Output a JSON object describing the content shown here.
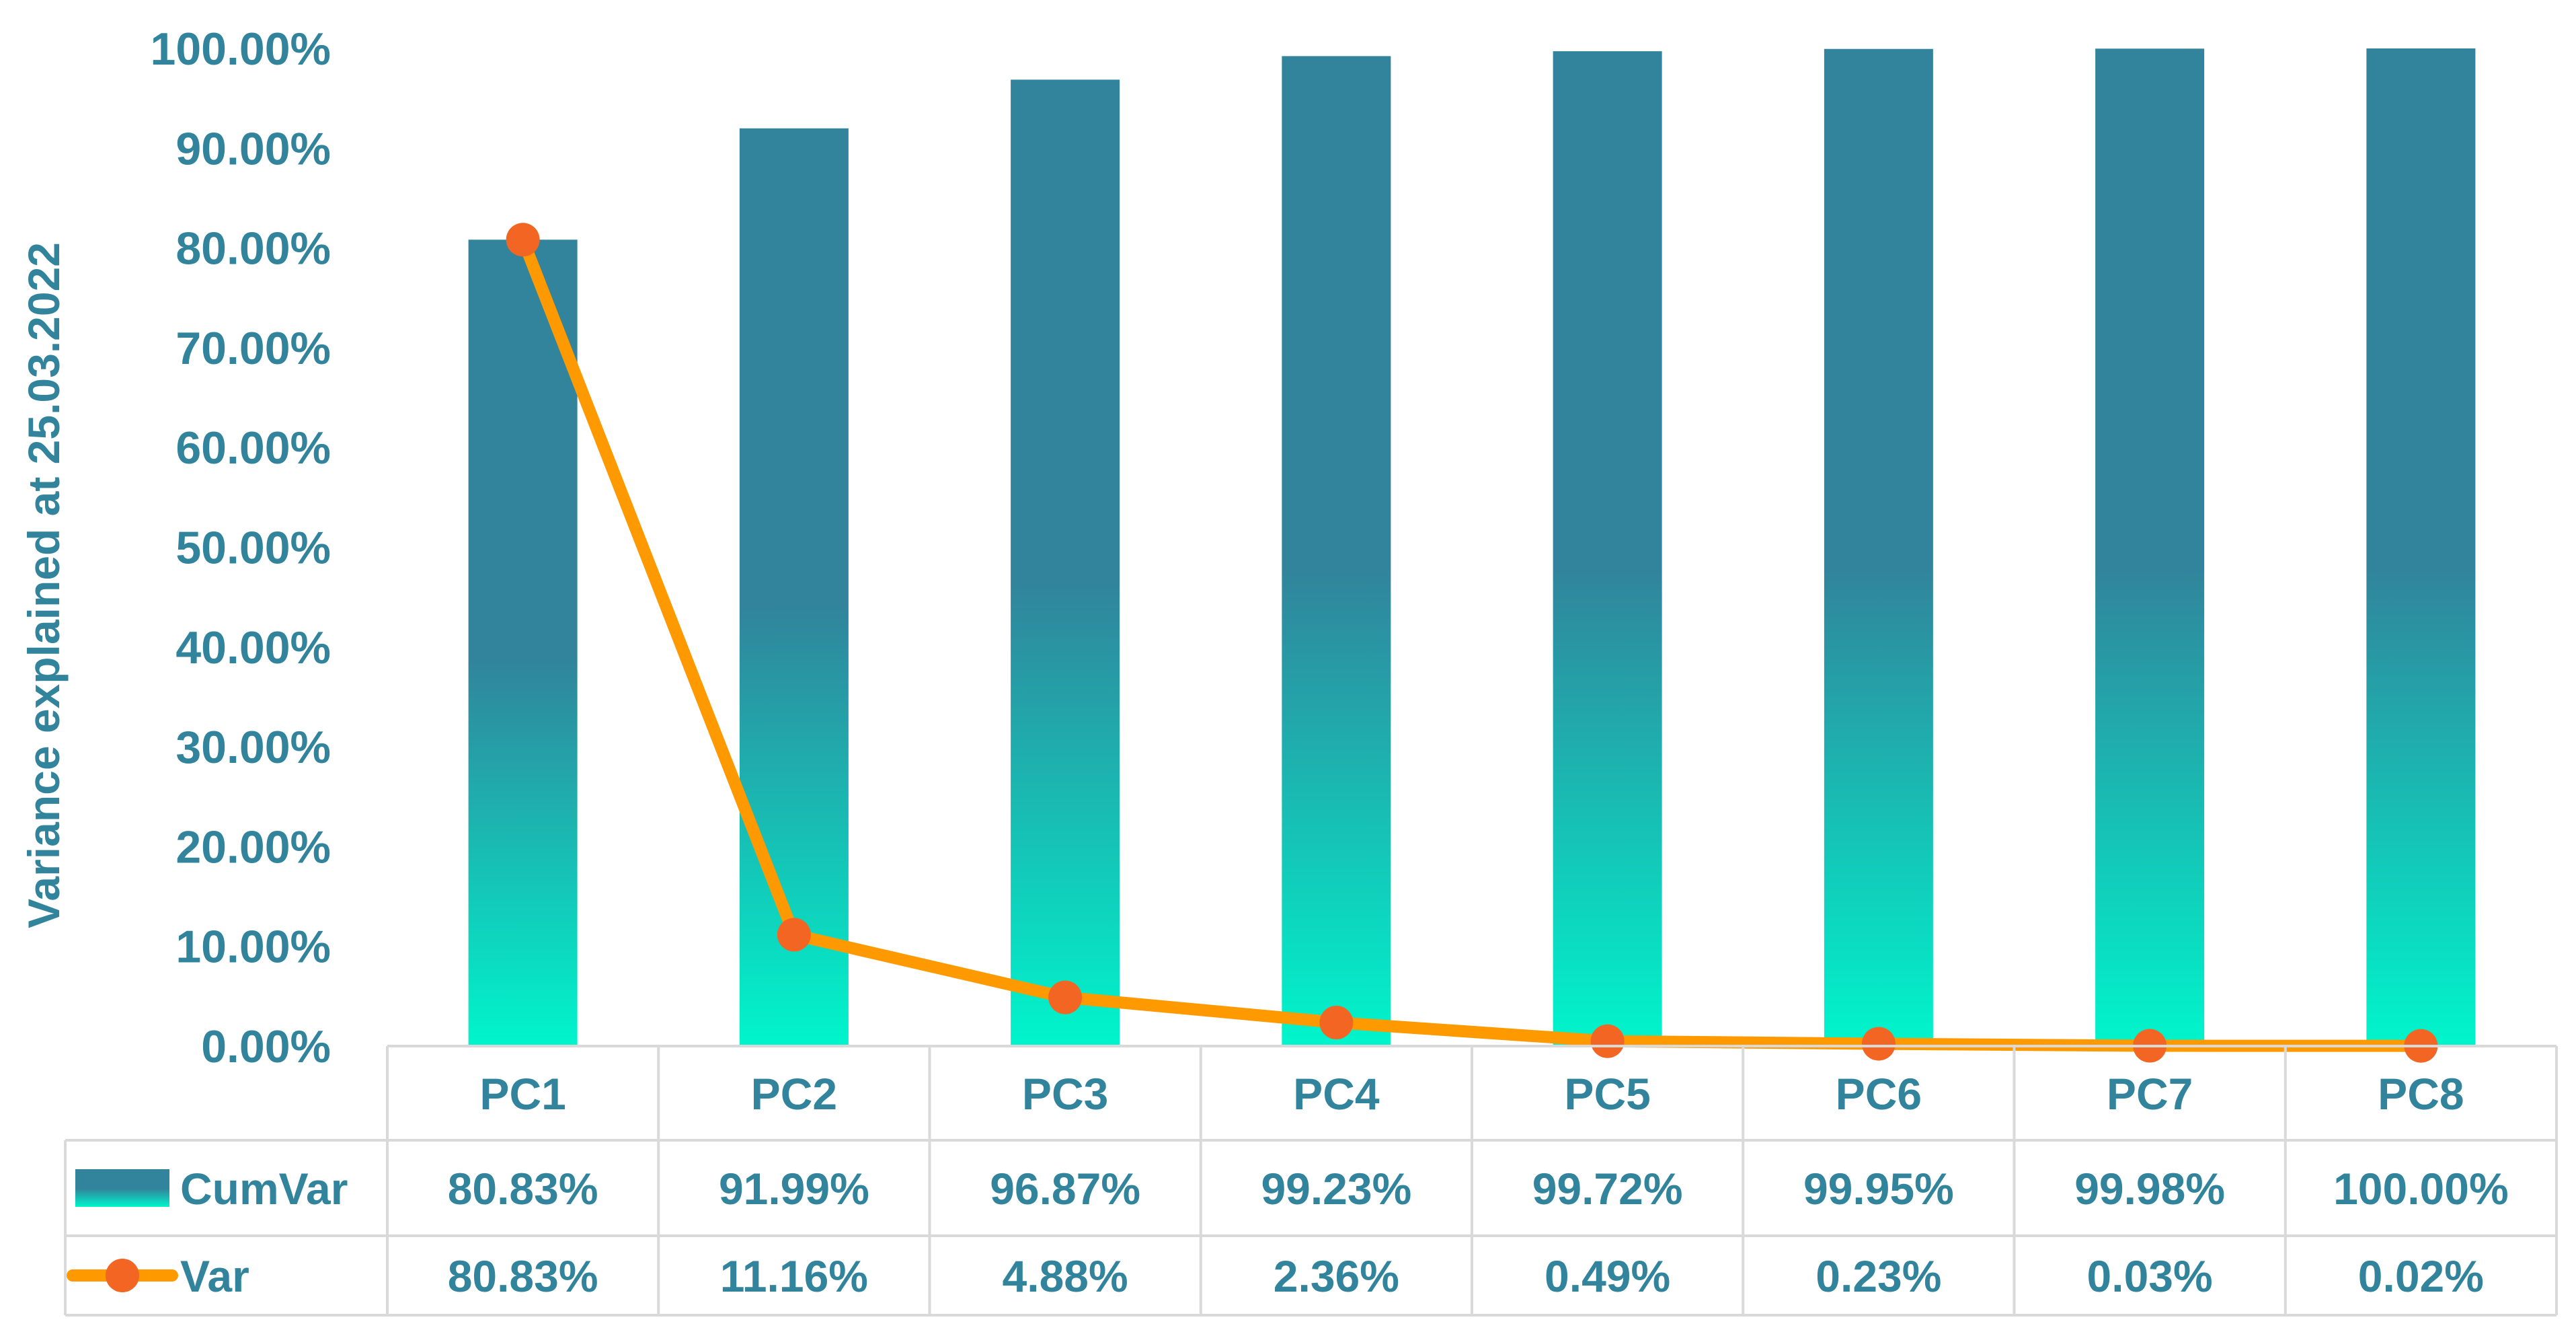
{
  "chart_data": {
    "type": "bar",
    "categories": [
      "PC1",
      "PC2",
      "PC3",
      "PC4",
      "PC5",
      "PC6",
      "PC7",
      "PC8"
    ],
    "series": [
      {
        "name": "CumVar",
        "type": "bar",
        "values": [
          80.83,
          91.99,
          96.87,
          99.23,
          99.72,
          99.95,
          99.98,
          100.0
        ],
        "labels": [
          "80.83%",
          "91.99%",
          "96.87%",
          "99.23%",
          "99.72%",
          "99.95%",
          "99.98%",
          "100.00%"
        ],
        "color_top": "#31849B",
        "color_bottom": "#00F5CC"
      },
      {
        "name": "Var",
        "type": "line",
        "values": [
          80.83,
          11.16,
          4.88,
          2.36,
          0.49,
          0.23,
          0.03,
          0.02
        ],
        "labels": [
          "80.83%",
          "11.16%",
          "4.88%",
          "2.36%",
          "0.49%",
          "0.23%",
          "0.03%",
          "0.02%"
        ],
        "line_color": "#FF9900",
        "marker_color": "#F26522"
      }
    ],
    "ylabel": "Variance explained at 25.03.2022",
    "ylim": [
      0,
      100
    ],
    "yticks": [
      0,
      10,
      20,
      30,
      40,
      50,
      60,
      70,
      80,
      90,
      100
    ],
    "ytick_labels": [
      "0.00%",
      "10.00%",
      "20.00%",
      "30.00%",
      "40.00%",
      "50.00%",
      "60.00%",
      "70.00%",
      "80.00%",
      "90.00%",
      "100.00%"
    ],
    "data_table": true,
    "text_color": "#31849B"
  }
}
